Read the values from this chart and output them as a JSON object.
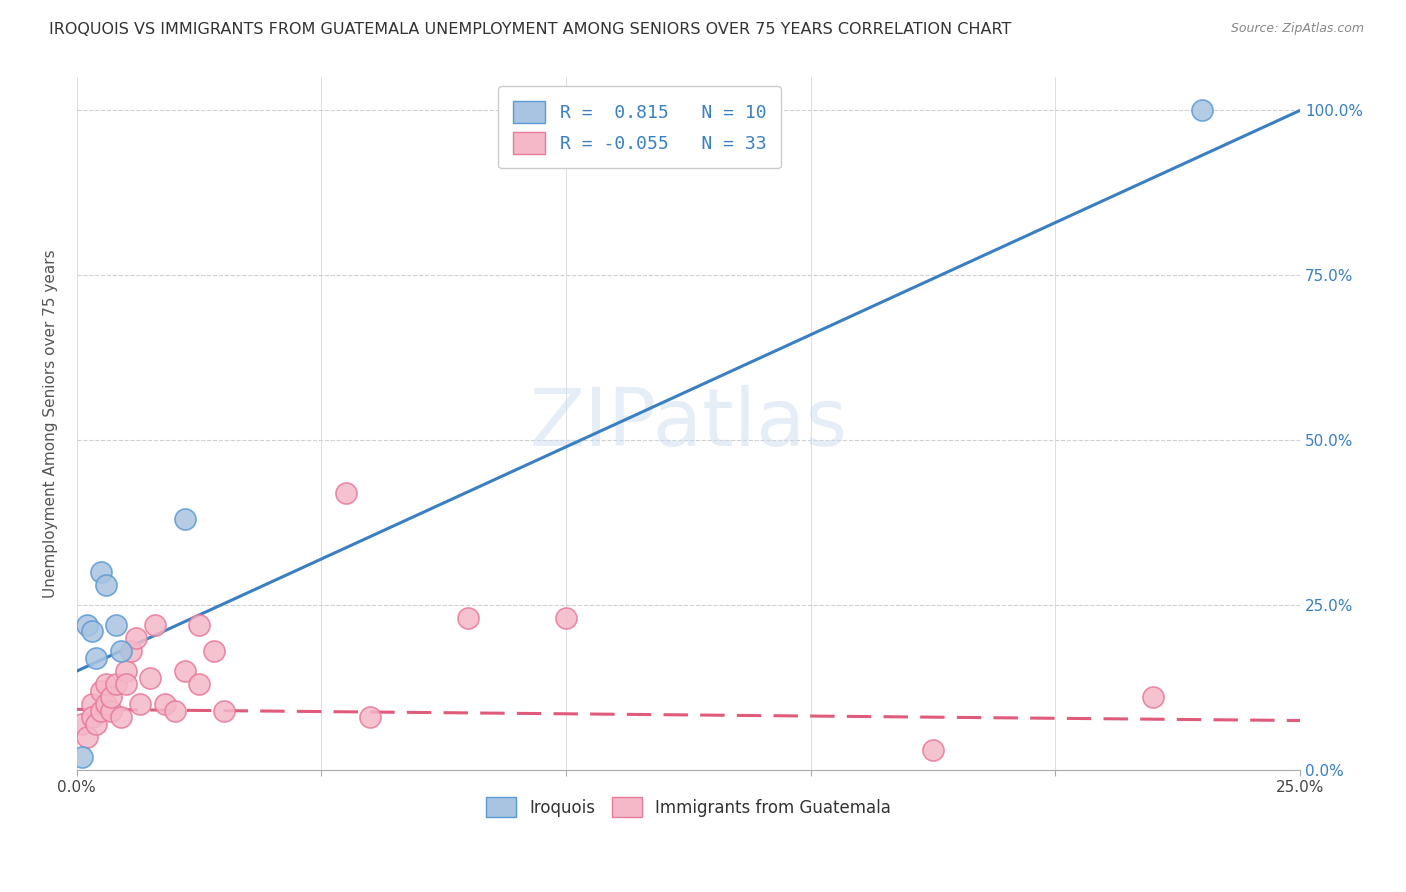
{
  "title": "IROQUOIS VS IMMIGRANTS FROM GUATEMALA UNEMPLOYMENT AMONG SENIORS OVER 75 YEARS CORRELATION CHART",
  "source": "Source: ZipAtlas.com",
  "ylabel": "Unemployment Among Seniors over 75 years",
  "watermark": "ZIPatlas",
  "xlim": [
    0.0,
    0.25
  ],
  "ylim": [
    0.0,
    1.05
  ],
  "xticks": [
    0.0,
    0.05,
    0.1,
    0.15,
    0.2,
    0.25
  ],
  "xtick_labels": [
    "0.0%",
    "",
    "",
    "",
    "",
    "25.0%"
  ],
  "ytick_labels_right": [
    "0.0%",
    "25.0%",
    "50.0%",
    "75.0%",
    "100.0%"
  ],
  "yticks": [
    0.0,
    0.25,
    0.5,
    0.75,
    1.0
  ],
  "legend_r1": "R =  0.815   N = 10",
  "legend_r2": "R = -0.055   N = 33",
  "iroquois_color": "#a8c4e0",
  "iroquois_edge": "#5b9bd5",
  "guatemala_color": "#f4b8c8",
  "guatemala_edge": "#e87a9a",
  "line_iroquois_color": "#3a7fc1",
  "line_guatemala_color": "#e05a7a",
  "iroquois_line_x0": 0.0,
  "iroquois_line_y0": 0.15,
  "iroquois_line_x1": 0.25,
  "iroquois_line_y1": 1.0,
  "guatemala_line_x0": 0.0,
  "guatemala_line_y0": 0.092,
  "guatemala_line_x1": 0.25,
  "guatemala_line_y1": 0.075,
  "iroquois_x": [
    0.001,
    0.002,
    0.003,
    0.004,
    0.005,
    0.006,
    0.008,
    0.009,
    0.022,
    0.23
  ],
  "iroquois_y": [
    0.02,
    0.22,
    0.21,
    0.17,
    0.3,
    0.28,
    0.22,
    0.18,
    0.38,
    1.0
  ],
  "guatemala_x": [
    0.001,
    0.002,
    0.003,
    0.003,
    0.004,
    0.005,
    0.005,
    0.006,
    0.006,
    0.007,
    0.007,
    0.008,
    0.009,
    0.01,
    0.01,
    0.011,
    0.012,
    0.013,
    0.015,
    0.016,
    0.018,
    0.02,
    0.022,
    0.025,
    0.025,
    0.028,
    0.03,
    0.055,
    0.06,
    0.08,
    0.1,
    0.175,
    0.22
  ],
  "guatemala_y": [
    0.07,
    0.05,
    0.1,
    0.08,
    0.07,
    0.12,
    0.09,
    0.1,
    0.13,
    0.09,
    0.11,
    0.13,
    0.08,
    0.15,
    0.13,
    0.18,
    0.2,
    0.1,
    0.14,
    0.22,
    0.1,
    0.09,
    0.15,
    0.22,
    0.13,
    0.18,
    0.09,
    0.42,
    0.08,
    0.23,
    0.23,
    0.03,
    0.11
  ]
}
